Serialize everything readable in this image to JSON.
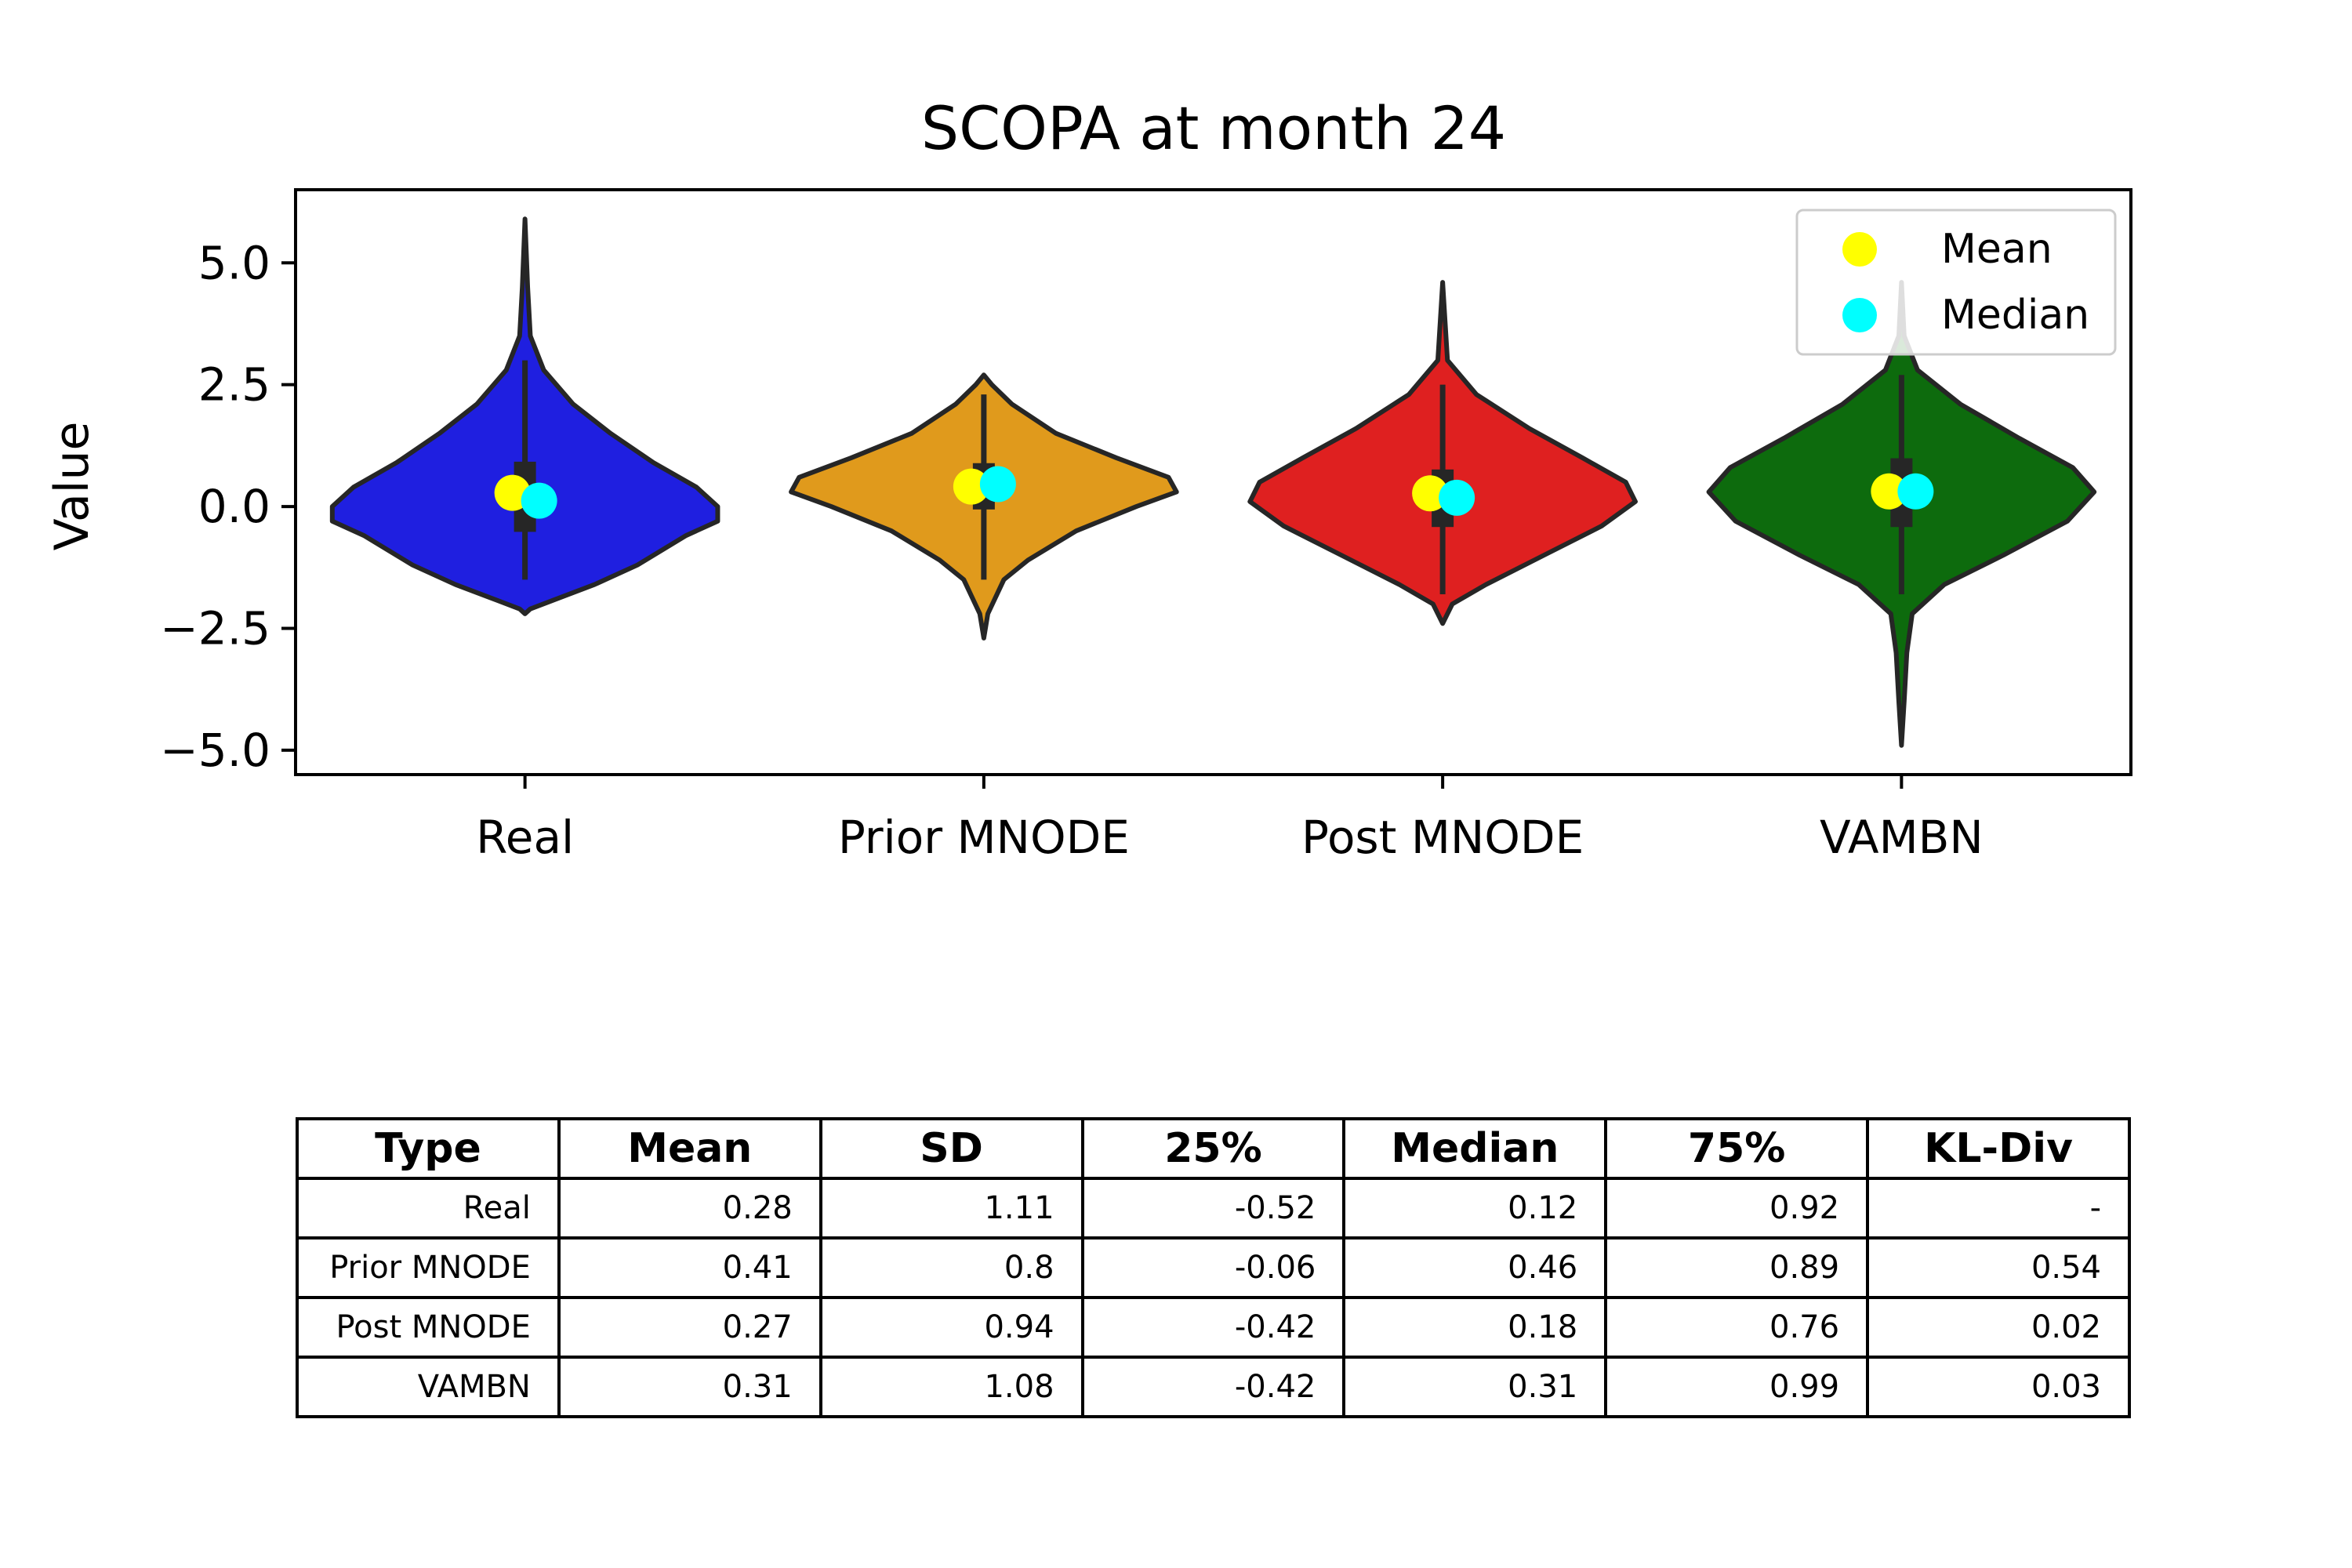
{
  "chart_data": {
    "type": "violin",
    "title": "SCOPA at month 24",
    "xlabel": "",
    "ylabel": "Value",
    "ylim": [
      -5.5,
      6.5
    ],
    "yticks": [
      5.0,
      2.5,
      0.0,
      -2.5,
      -5.0
    ],
    "ytick_labels": [
      "5.0",
      "2.5",
      "0.0",
      "−2.5",
      "−5.0"
    ],
    "categories": [
      "Real",
      "Prior MNODE",
      "Post MNODE",
      "VAMBN"
    ],
    "colors": [
      "#1f1fe0",
      "#e09a1c",
      "#df2020",
      "#0d6b0d"
    ],
    "violins": [
      {
        "name": "Real",
        "min": -2.2,
        "max": 5.9,
        "q1": -0.52,
        "q3": 0.92,
        "mean": 0.28,
        "median": 0.12,
        "whisker_low": -1.5,
        "whisker_high": 3.0,
        "profile": [
          [
            -2.2,
            0.0
          ],
          [
            -2.1,
            0.1
          ],
          [
            -1.6,
            1.3
          ],
          [
            -1.2,
            2.1
          ],
          [
            -0.6,
            3.0
          ],
          [
            -0.3,
            3.6
          ],
          [
            0.0,
            3.6
          ],
          [
            0.4,
            3.2
          ],
          [
            0.9,
            2.4
          ],
          [
            1.5,
            1.6
          ],
          [
            2.1,
            0.9
          ],
          [
            2.8,
            0.35
          ],
          [
            3.5,
            0.1
          ],
          [
            4.5,
            0.05
          ],
          [
            5.9,
            0.0
          ]
        ]
      },
      {
        "name": "Prior MNODE",
        "min": -2.7,
        "max": 2.7,
        "q1": -0.06,
        "q3": 0.89,
        "mean": 0.41,
        "median": 0.46,
        "whisker_low": -1.5,
        "whisker_high": 2.3,
        "profile": [
          [
            -2.7,
            0.0
          ],
          [
            -2.2,
            0.1
          ],
          [
            -1.5,
            0.5
          ],
          [
            -1.1,
            1.1
          ],
          [
            -0.5,
            2.3
          ],
          [
            0.0,
            3.8
          ],
          [
            0.3,
            4.8
          ],
          [
            0.6,
            4.6
          ],
          [
            1.0,
            3.3
          ],
          [
            1.5,
            1.8
          ],
          [
            2.1,
            0.7
          ],
          [
            2.5,
            0.2
          ],
          [
            2.7,
            0.0
          ]
        ]
      },
      {
        "name": "Post MNODE",
        "min": -2.4,
        "max": 4.6,
        "q1": -0.42,
        "q3": 0.76,
        "mean": 0.27,
        "median": 0.18,
        "whisker_low": -1.8,
        "whisker_high": 2.5,
        "profile": [
          [
            -2.4,
            0.0
          ],
          [
            -2.0,
            0.2
          ],
          [
            -1.6,
            0.9
          ],
          [
            -1.0,
            2.1
          ],
          [
            -0.4,
            3.3
          ],
          [
            0.1,
            4.0
          ],
          [
            0.5,
            3.8
          ],
          [
            1.0,
            2.9
          ],
          [
            1.6,
            1.8
          ],
          [
            2.3,
            0.7
          ],
          [
            3.0,
            0.1
          ],
          [
            3.8,
            0.05
          ],
          [
            4.6,
            0.0
          ]
        ]
      },
      {
        "name": "VAMBN",
        "min": -4.9,
        "max": 4.6,
        "q1": -0.42,
        "q3": 0.99,
        "mean": 0.31,
        "median": 0.31,
        "whisker_low": -1.8,
        "whisker_high": 2.7,
        "profile": [
          [
            -4.9,
            0.0
          ],
          [
            -4.0,
            0.05
          ],
          [
            -3.0,
            0.1
          ],
          [
            -2.2,
            0.2
          ],
          [
            -1.6,
            0.8
          ],
          [
            -1.0,
            1.9
          ],
          [
            -0.3,
            3.1
          ],
          [
            0.3,
            3.6
          ],
          [
            0.8,
            3.2
          ],
          [
            1.4,
            2.2
          ],
          [
            2.1,
            1.1
          ],
          [
            2.8,
            0.3
          ],
          [
            3.5,
            0.05
          ],
          [
            4.6,
            0.0
          ]
        ]
      }
    ],
    "legend": {
      "placement": "top-right",
      "entries": [
        {
          "label": "Mean",
          "color": "#ffff00"
        },
        {
          "label": "Median",
          "color": "#00ffff"
        }
      ]
    }
  },
  "table": {
    "headers": [
      "Type",
      "Mean",
      "SD",
      "25%",
      "Median",
      "75%",
      "KL-Div"
    ],
    "rows": [
      [
        "Real",
        "0.28",
        "1.11",
        "-0.52",
        "0.12",
        "0.92",
        "-"
      ],
      [
        "Prior MNODE",
        "0.41",
        "0.8",
        "-0.06",
        "0.46",
        "0.89",
        "0.54"
      ],
      [
        "Post MNODE",
        "0.27",
        "0.94",
        "-0.42",
        "0.18",
        "0.76",
        "0.02"
      ],
      [
        "VAMBN",
        "0.31",
        "1.08",
        "-0.42",
        "0.31",
        "0.99",
        "0.03"
      ]
    ]
  }
}
